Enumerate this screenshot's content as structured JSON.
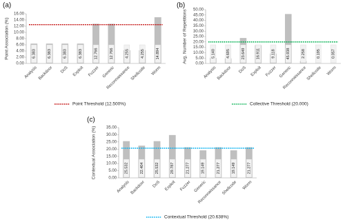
{
  "chart_data": [
    {
      "type": "bar",
      "label": "(a)",
      "y_label": "Point Association (%)",
      "categories": [
        "Analysis",
        "Backdoor",
        "DoS",
        "Exploit",
        "Fuzzer",
        "Generic",
        "Reconnaissance",
        "Shellcode",
        "Worm"
      ],
      "values": [
        6.383,
        6.383,
        6.383,
        6.383,
        12.766,
        12.766,
        4.255,
        4.255,
        14.894
      ],
      "value_labels": [
        "6.383",
        "6.383",
        "6.383",
        "6.383",
        "12.766",
        "12.766",
        "4.255",
        "4.255",
        "14.894"
      ],
      "color": "#bfbfbf",
      "ylim": [
        0,
        16
      ],
      "yticks": [
        {
          "value": 0,
          "label": "0.00"
        },
        {
          "value": 2,
          "label": "2.00"
        },
        {
          "value": 4,
          "label": "4.00"
        },
        {
          "value": 6,
          "label": "6.00"
        },
        {
          "value": 8,
          "label": "8.00"
        },
        {
          "value": 10,
          "label": "10.00"
        },
        {
          "value": 12,
          "label": "12.00"
        },
        {
          "value": 14,
          "label": "14.00"
        },
        {
          "value": 16,
          "label": "16.00"
        }
      ],
      "threshold": {
        "value": 12.5,
        "label": "Point Threshold (12.500%)",
        "color": "#c00000"
      }
    },
    {
      "type": "bar",
      "label": "(b)",
      "y_label": "Avg. Number of Repetitions",
      "categories": [
        "Analysis",
        "Backdoor",
        "DoS",
        "Exploit",
        "Fuzzer",
        "Generic",
        "Reconnaissance",
        "Shellcode",
        "Worm"
      ],
      "values": [
        5.14,
        4.695,
        23.649,
        16.911,
        9.118,
        45.938,
        2.258,
        0.195,
        0.057
      ],
      "value_labels": [
        "5.140",
        "4.695",
        "23.649",
        "16.911",
        "9.118",
        "45.938",
        "2.258",
        "0.195",
        "0.057"
      ],
      "color": "#bfbfbf",
      "ylim": [
        0,
        50
      ],
      "yticks": [
        {
          "value": 0,
          "label": "0.00"
        },
        {
          "value": 5,
          "label": "5.00"
        },
        {
          "value": 10,
          "label": "10.00"
        },
        {
          "value": 15,
          "label": "15.00"
        },
        {
          "value": 20,
          "label": "20.00"
        },
        {
          "value": 25,
          "label": "25.00"
        },
        {
          "value": 30,
          "label": "30.00"
        },
        {
          "value": 35,
          "label": "35.00"
        },
        {
          "value": 40,
          "label": "40.00"
        },
        {
          "value": 45,
          "label": "45.00"
        },
        {
          "value": 50,
          "label": "50.00"
        }
      ],
      "threshold": {
        "value": 20,
        "label": "Collective Threshold (20.000)",
        "color": "#00b050"
      }
    },
    {
      "type": "bar",
      "label": "(c)",
      "y_label": "Contextual Association (%)",
      "categories": [
        "Analysis",
        "Backdoor",
        "DoS",
        "Exploit",
        "Fuzzer",
        "Generic",
        "Reconnaissance",
        "Shellcode",
        "Worm"
      ],
      "values": [
        25.532,
        22.404,
        25.532,
        29.787,
        21.277,
        19.149,
        21.277,
        19.149,
        21.277
      ],
      "value_labels": [
        "25.532",
        "22.404",
        "25.532",
        "29.787",
        "21.277",
        "19.149",
        "21.277",
        "19.149",
        "21.277"
      ],
      "color": "#bfbfbf",
      "ylim": [
        0,
        35
      ],
      "yticks": [
        {
          "value": 0,
          "label": "0.00"
        },
        {
          "value": 5,
          "label": "5.00"
        },
        {
          "value": 10,
          "label": "10.00"
        },
        {
          "value": 15,
          "label": "15.00"
        },
        {
          "value": 20,
          "label": "20.00"
        },
        {
          "value": 25,
          "label": "25.00"
        },
        {
          "value": 30,
          "label": "30.00"
        },
        {
          "value": 35,
          "label": "35.00"
        }
      ],
      "threshold": {
        "value": 20.638,
        "label": "Contextual Threshold (20.638%)",
        "color": "#00b0f0"
      }
    }
  ]
}
